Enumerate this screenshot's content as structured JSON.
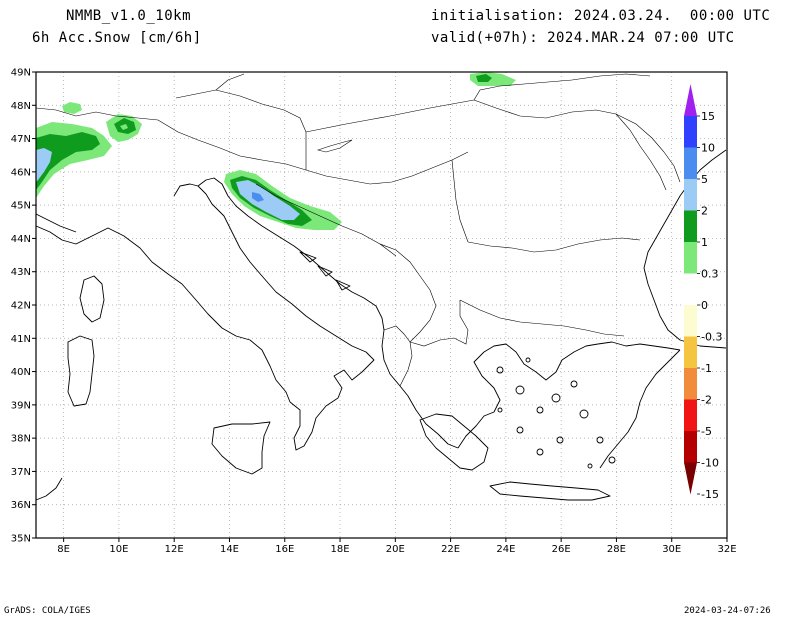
{
  "header": {
    "model": "NMMB_v1.0_10km",
    "variable": "6h Acc.Snow [cm/6h]",
    "init": "initialisation: 2024.03.24.  00:00 UTC",
    "valid": "valid(+07h): 2024.MAR.24 07:00 UTC"
  },
  "axes": {
    "lat_labels": [
      "49N",
      "48N",
      "47N",
      "46N",
      "45N",
      "44N",
      "43N",
      "42N",
      "41N",
      "40N",
      "39N",
      "38N",
      "37N",
      "36N",
      "35N"
    ],
    "lon_labels": [
      "8E",
      "10E",
      "12E",
      "14E",
      "16E",
      "18E",
      "20E",
      "22E",
      "24E",
      "26E",
      "28E",
      "30E",
      "32E"
    ],
    "lat_range": [
      35,
      49
    ],
    "lon_range": [
      7,
      32
    ]
  },
  "colorbar": {
    "labels": [
      "15",
      "10",
      "5",
      "2",
      "1",
      "0.3",
      "0",
      "-0.3",
      "-1",
      "-2",
      "-5",
      "-10",
      "-15"
    ],
    "colors_top_to_bottom": [
      "#a020f0",
      "#3040ff",
      "#4a8cf0",
      "#9ccbf5",
      "#0f9b1e",
      "#7de87a",
      "#ffffff",
      "#fdfbd0",
      "#f5c542",
      "#f08c3c",
      "#f01414",
      "#b40000",
      "#780000"
    ]
  },
  "footer": {
    "left": "GrADS: COLA/IGES",
    "right": "2024-03-24-07:26"
  }
}
